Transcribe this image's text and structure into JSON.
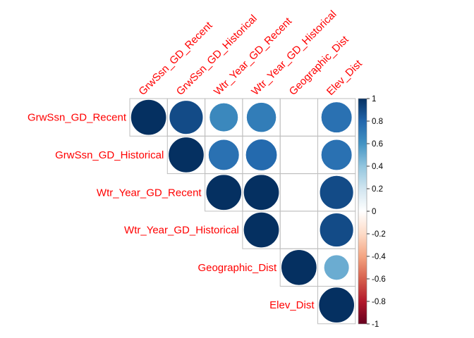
{
  "chart_data": {
    "type": "heatmap",
    "variant": "correlation-matrix-upper-circles",
    "variables": [
      "GrwSsn_GD_Recent",
      "GrwSsn_GD_Historical",
      "Wtr_Year_GD_Recent",
      "Wtr_Year_GD_Historical",
      "Geographic_Dist",
      "Elev_Dist"
    ],
    "matrix": [
      [
        1.0,
        0.9,
        0.65,
        0.7,
        null,
        0.75
      ],
      [
        0.9,
        1.0,
        0.75,
        0.78,
        null,
        0.75
      ],
      [
        0.65,
        0.75,
        1.0,
        1.0,
        null,
        0.9
      ],
      [
        0.7,
        0.78,
        1.0,
        1.0,
        null,
        0.9
      ],
      [
        null,
        null,
        null,
        null,
        1.0,
        0.5
      ],
      [
        0.75,
        0.75,
        0.9,
        0.9,
        0.5,
        1.0
      ]
    ],
    "colorbar": {
      "min": -1,
      "max": 1,
      "ticks": [
        "1",
        "0.8",
        "0.6",
        "0.4",
        "0.2",
        "0",
        "-0.2",
        "-0.4",
        "-0.6",
        "-0.8",
        "-1"
      ],
      "colors": [
        "#67001F",
        "#B2182B",
        "#D6604D",
        "#F4A582",
        "#FDDBC7",
        "#FFFFFF",
        "#D1E5F0",
        "#92C5DE",
        "#4393C3",
        "#2166AC",
        "#053061"
      ]
    },
    "label_color": "#FF0000",
    "grid_color": "#BEBEBE",
    "label_rotation": "45"
  }
}
